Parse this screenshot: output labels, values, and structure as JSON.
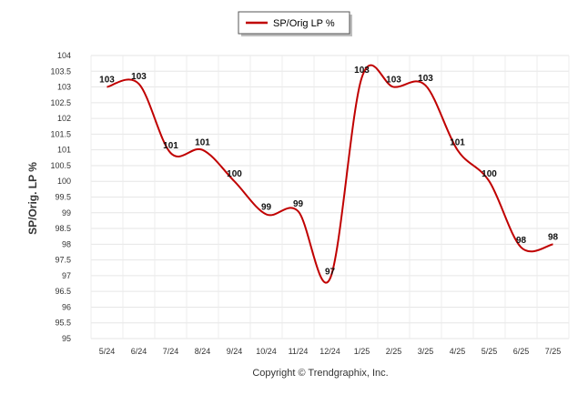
{
  "chart_data": {
    "type": "line",
    "title": "",
    "xlabel": "",
    "ylabel": "SP/Orig. LP %",
    "ylim": [
      95,
      104
    ],
    "yticks": [
      95,
      95.5,
      96,
      96.5,
      97,
      97.5,
      98,
      98.5,
      99,
      99.5,
      100,
      100.5,
      101,
      101.5,
      102,
      102.5,
      103,
      103.5,
      104
    ],
    "ytick_labels": [
      "95",
      "95.5",
      "96",
      "96.5",
      "97",
      "97.5",
      "98",
      "98.5",
      "99",
      "99.5",
      "100",
      "100.5",
      "101",
      "101.5",
      "102",
      "102.5",
      "103",
      "103.5",
      "104"
    ],
    "categories": [
      "5/24",
      "6/24",
      "7/24",
      "8/24",
      "9/24",
      "10/24",
      "11/24",
      "12/24",
      "1/25",
      "2/25",
      "3/25",
      "4/25",
      "5/25",
      "6/25",
      "7/25"
    ],
    "series": [
      {
        "name": "SP/Orig LP %",
        "color": "#c00000",
        "values": [
          103,
          103.1,
          100.9,
          101,
          100,
          98.95,
          99.05,
          96.9,
          103.3,
          103,
          103.05,
          101,
          100,
          97.9,
          98
        ],
        "labels": [
          "103",
          "103",
          "101",
          "101",
          "100",
          "99",
          "99",
          "97",
          "103",
          "103",
          "103",
          "101",
          "100",
          "98",
          "98"
        ]
      }
    ],
    "grid": true,
    "legend_position": "top-center"
  },
  "legend": {
    "label": "SP/Orig LP %"
  },
  "footer": {
    "copyright": "Copyright © Trendgraphix, Inc."
  }
}
